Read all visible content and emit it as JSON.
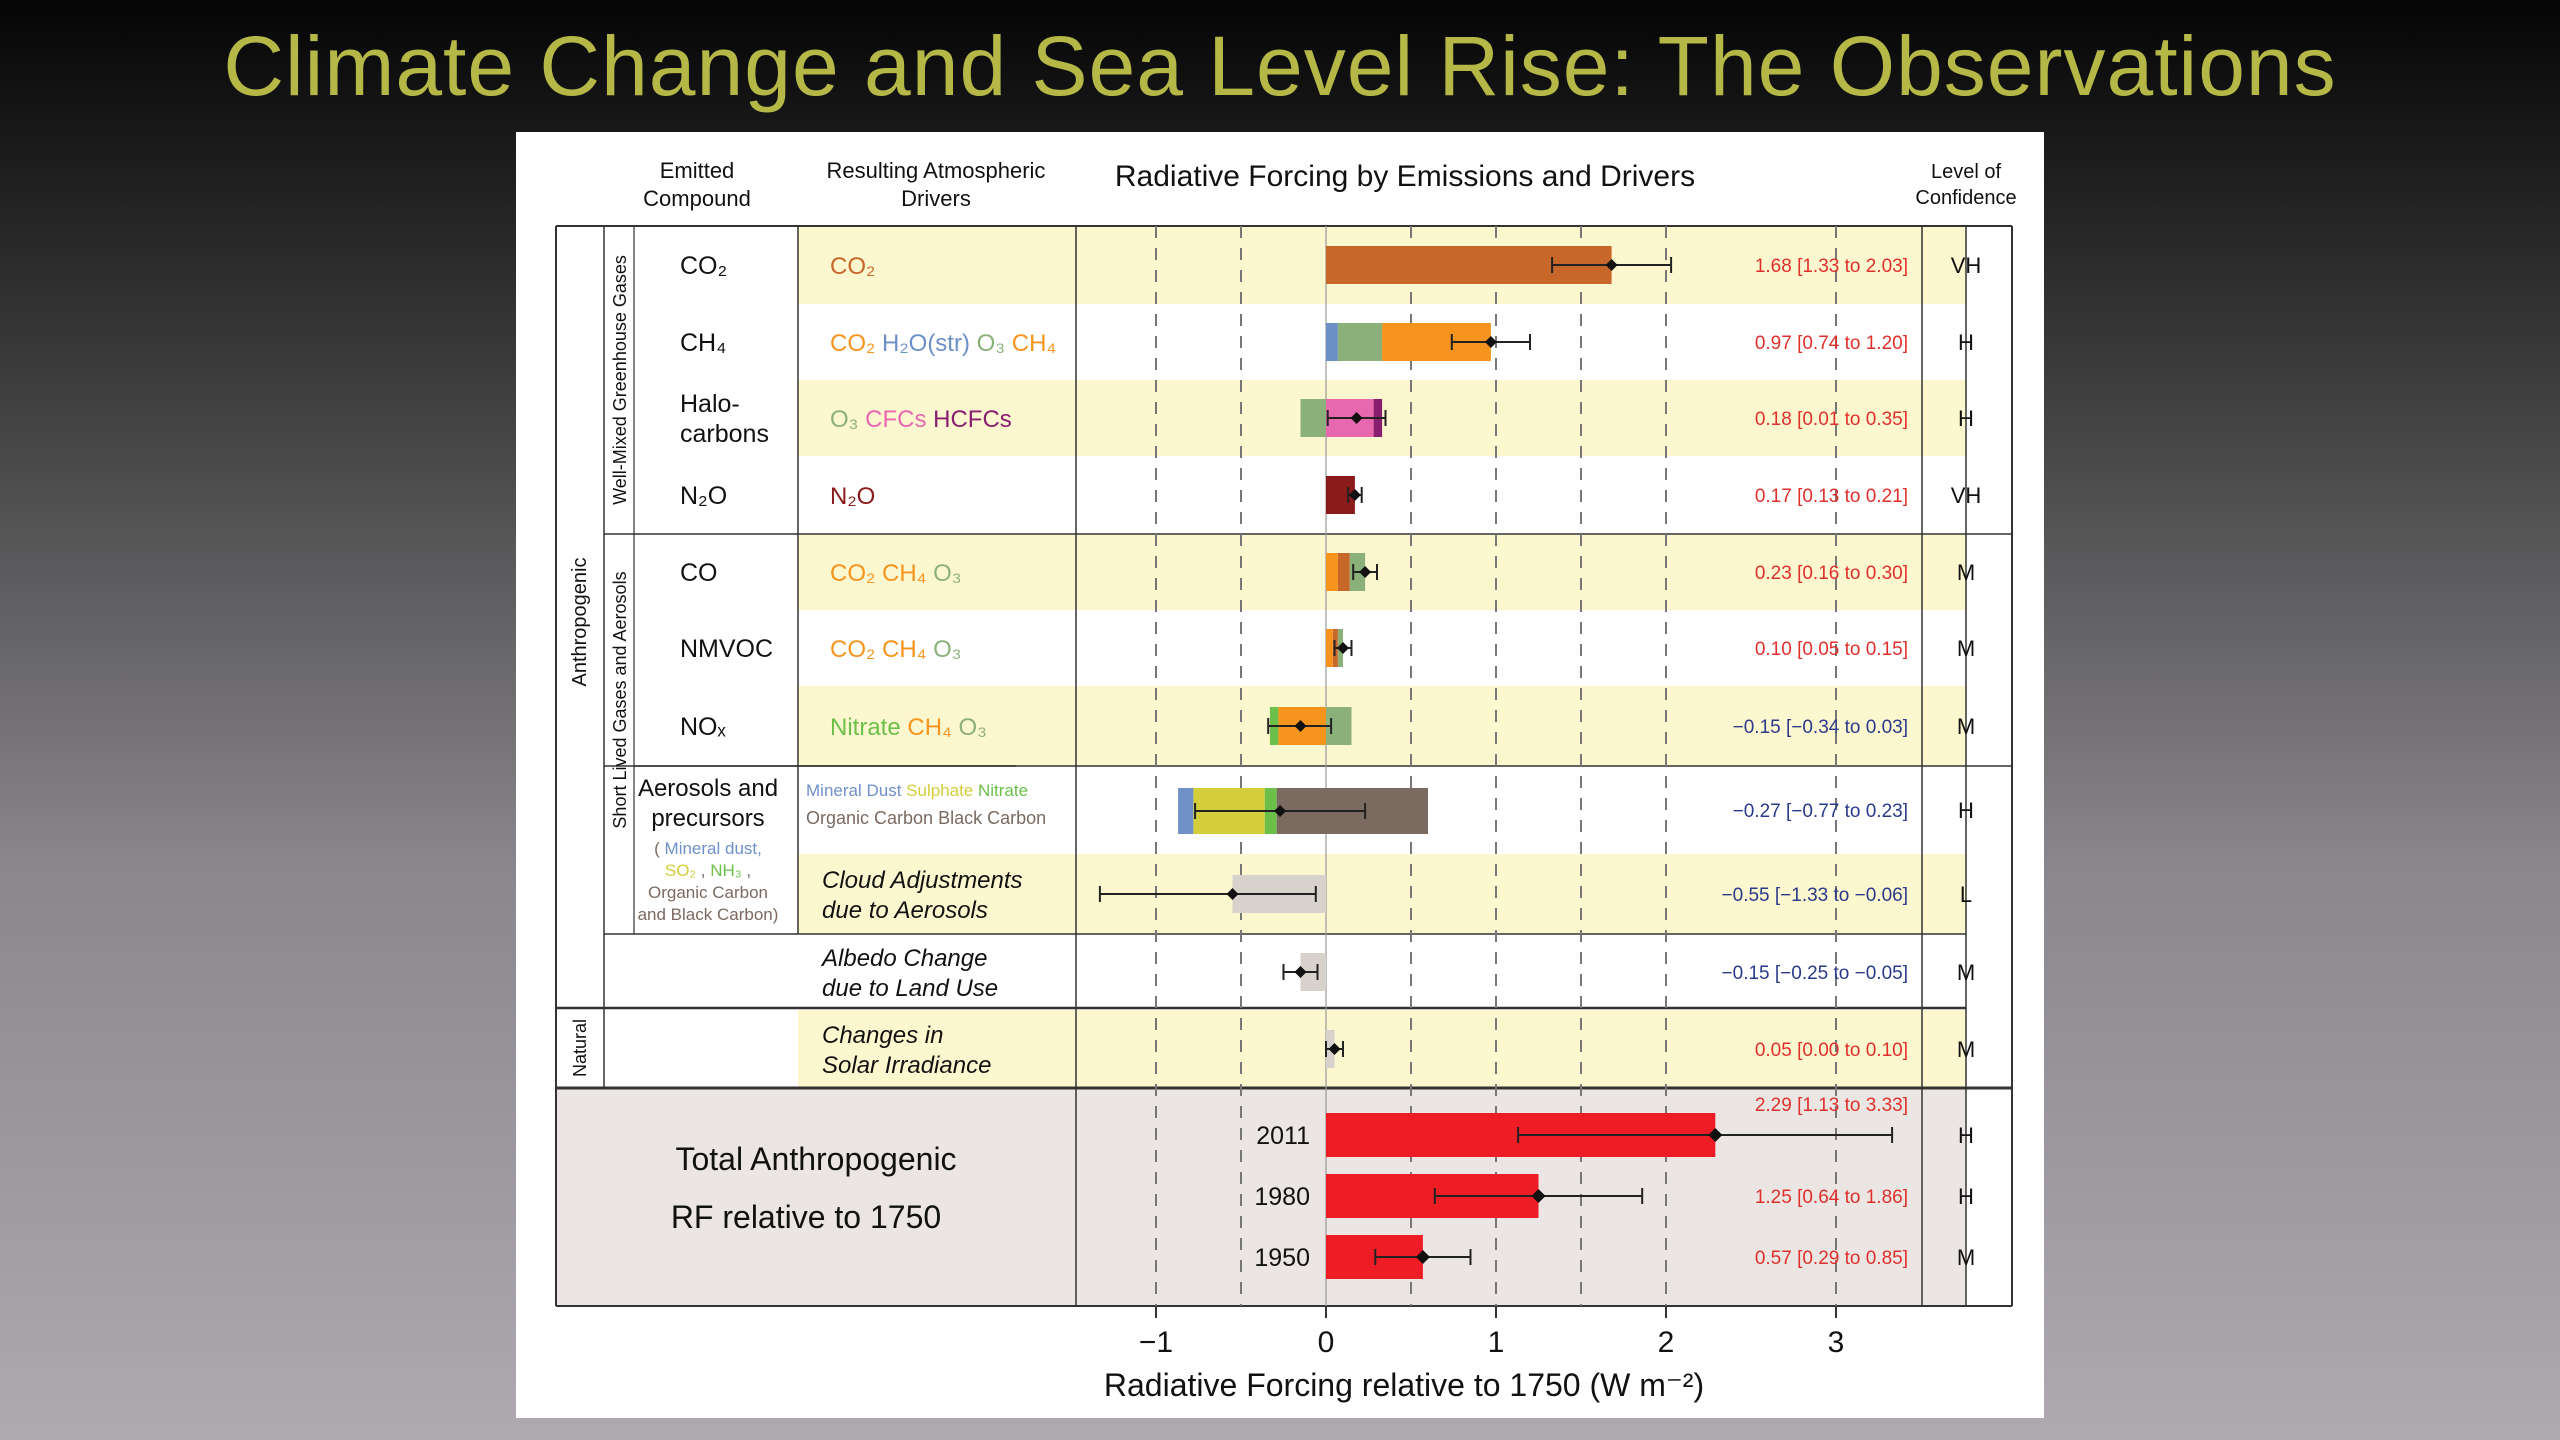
{
  "slide": {
    "title": "Climate Change and Sea Level Rise: The Observations"
  },
  "chart_data": {
    "type": "bar",
    "title": "Radiative Forcing by Emissions and Drivers",
    "xlabel": "Radiative Forcing relative to 1750 (W m⁻²)",
    "xlim": [
      -1.5,
      3.5
    ],
    "xticks": [
      "−1",
      "0",
      "1",
      "2",
      "3"
    ],
    "xtick_values": [
      -1,
      0,
      1,
      2,
      3
    ],
    "headers": {
      "emitted": [
        "Emitted",
        "Compound"
      ],
      "drivers": [
        "Resulting Atmospheric",
        "Drivers"
      ],
      "confidence": [
        "Level of",
        "Confidence"
      ]
    },
    "group_labels": {
      "anthropogenic": "Anthropogenic",
      "natural": "Natural",
      "wmghg": "Well-Mixed Greenhouse Gases",
      "slgas": "Short Lived Gases and Aerosols"
    },
    "colors": {
      "co2": "#c8672a",
      "ch4": "#f7941d",
      "h2o": "#6d8fc7",
      "o3": "#8bb07a",
      "cfc": "#e868b0",
      "hcfc": "#8a1e6e",
      "n2o": "#8b1a1a",
      "nitrate": "#6cc04a",
      "dust": "#7090c8",
      "sulphate": "#d4ce3a",
      "bc": "#7a6a60",
      "gray": "#d8d2cc",
      "total": "#ee1c25",
      "value_pos": "#e0302c",
      "value_neg": "#2a3a8a"
    },
    "rows": [
      {
        "id": "co2",
        "compound": "CO₂",
        "drivers": [
          {
            "t": "CO₂",
            "c": "co2"
          }
        ],
        "segments": [
          {
            "from": 0,
            "to": 1.68,
            "c": "co2"
          }
        ],
        "best": 1.68,
        "range": [
          1.33,
          2.03
        ],
        "label": "1.68 [1.33 to 2.03]",
        "conf": "VH"
      },
      {
        "id": "ch4",
        "compound": "CH₄",
        "drivers": [
          {
            "t": "CO₂",
            "c": "ch4"
          },
          {
            "t": "H₂O(str)",
            "c": "h2o"
          },
          {
            "t": "O₃",
            "c": "o3"
          },
          {
            "t": "CH₄",
            "c": "ch4"
          }
        ],
        "segments": [
          {
            "from": 0,
            "to": 0.07,
            "c": "h2o"
          },
          {
            "from": 0.07,
            "to": 0.33,
            "c": "o3"
          },
          {
            "from": 0.33,
            "to": 0.97,
            "c": "ch4"
          }
        ],
        "best": 0.97,
        "range": [
          0.74,
          1.2
        ],
        "label": "0.97 [0.74 to 1.20]",
        "conf": "H"
      },
      {
        "id": "halo",
        "compound": "Halo-carbons",
        "compound_lines": [
          "Halo-",
          "carbons"
        ],
        "drivers": [
          {
            "t": "O₃",
            "c": "o3"
          },
          {
            "t": "CFCs",
            "c": "cfc"
          },
          {
            "t": "HCFCs",
            "c": "hcfc"
          }
        ],
        "segments": [
          {
            "from": -0.15,
            "to": 0,
            "c": "o3"
          },
          {
            "from": 0,
            "to": 0.28,
            "c": "cfc"
          },
          {
            "from": 0.28,
            "to": 0.33,
            "c": "hcfc"
          }
        ],
        "best": 0.18,
        "range": [
          0.01,
          0.35
        ],
        "label": "0.18 [0.01 to 0.35]",
        "conf": "H"
      },
      {
        "id": "n2o",
        "compound": "N₂O",
        "drivers": [
          {
            "t": "N₂O",
            "c": "n2o"
          }
        ],
        "segments": [
          {
            "from": 0,
            "to": 0.17,
            "c": "n2o"
          }
        ],
        "best": 0.17,
        "range": [
          0.13,
          0.21
        ],
        "label": "0.17 [0.13 to 0.21]",
        "conf": "VH"
      },
      {
        "id": "co",
        "compound": "CO",
        "drivers": [
          {
            "t": "CO₂",
            "c": "ch4"
          },
          {
            "t": "CH₄",
            "c": "ch4"
          },
          {
            "t": "O₃",
            "c": "o3"
          }
        ],
        "segments": [
          {
            "from": 0,
            "to": 0.07,
            "c": "ch4"
          },
          {
            "from": 0.07,
            "to": 0.14,
            "c": "co2"
          },
          {
            "from": 0.14,
            "to": 0.23,
            "c": "o3"
          }
        ],
        "best": 0.23,
        "range": [
          0.16,
          0.3
        ],
        "label": "0.23 [0.16 to 0.30]",
        "conf": "M"
      },
      {
        "id": "nmvoc",
        "compound": "NMVOC",
        "drivers": [
          {
            "t": "CO₂",
            "c": "ch4"
          },
          {
            "t": "CH₄",
            "c": "ch4"
          },
          {
            "t": "O₃",
            "c": "o3"
          }
        ],
        "segments": [
          {
            "from": 0,
            "to": 0.04,
            "c": "ch4"
          },
          {
            "from": 0.04,
            "to": 0.07,
            "c": "co2"
          },
          {
            "from": 0.07,
            "to": 0.1,
            "c": "o3"
          }
        ],
        "best": 0.1,
        "range": [
          0.05,
          0.15
        ],
        "label": "0.10 [0.05 to 0.15]",
        "conf": "M"
      },
      {
        "id": "nox",
        "compound": "NOₓ",
        "drivers": [
          {
            "t": "Nitrate",
            "c": "nitrate"
          },
          {
            "t": "CH₄",
            "c": "ch4"
          },
          {
            "t": "O₃",
            "c": "o3"
          }
        ],
        "segments": [
          {
            "from": -0.33,
            "to": -0.28,
            "c": "nitrate"
          },
          {
            "from": -0.28,
            "to": 0,
            "c": "ch4"
          },
          {
            "from": 0,
            "to": 0.15,
            "c": "o3"
          }
        ],
        "best": -0.15,
        "range": [
          -0.34,
          0.03
        ],
        "label": "−0.15 [−0.34 to 0.03]",
        "conf": "M"
      },
      {
        "id": "aer",
        "compound": "Aerosols and precursors",
        "compound_lines": [
          "Aerosols and",
          "precursors"
        ],
        "sub_lines": [
          [
            {
              "t": "(",
              "c": "bc"
            },
            {
              "t": "Mineral dust,",
              "c": "dust"
            }
          ],
          [
            {
              "t": "SO₂",
              "c": "sulphate"
            },
            {
              "t": ", ",
              "c": "bc"
            },
            {
              "t": "NH₃",
              "c": "nitrate"
            },
            {
              "t": ",",
              "c": "bc"
            }
          ],
          [
            {
              "t": "Organic Carbon",
              "c": "bc"
            }
          ],
          [
            {
              "t": "and Black Carbon)",
              "c": "bc"
            }
          ]
        ],
        "driver_lines": [
          [
            {
              "t": "Mineral Dust",
              "c": "dust"
            },
            {
              "t": "Sulphate",
              "c": "sulphate"
            },
            {
              "t": "Nitrate",
              "c": "nitrate"
            }
          ],
          [
            {
              "t": "Organic Carbon",
              "c": "bc"
            },
            {
              "t": "Black Carbon",
              "c": "bc"
            }
          ]
        ],
        "segments": [
          {
            "from": -0.87,
            "to": -0.78,
            "c": "dust"
          },
          {
            "from": -0.78,
            "to": -0.36,
            "c": "sulphate"
          },
          {
            "from": -0.36,
            "to": -0.29,
            "c": "nitrate"
          },
          {
            "from": -0.29,
            "to": 0,
            "c": "bc"
          },
          {
            "from": 0,
            "to": 0.6,
            "c": "bc"
          }
        ],
        "best": -0.27,
        "range": [
          -0.77,
          0.23
        ],
        "label": "−0.27 [−0.77 to 0.23]",
        "conf": "H"
      },
      {
        "id": "cloud",
        "compound": "",
        "drivers_italic": [
          "Cloud Adjustments",
          "due to Aerosols"
        ],
        "segments": [
          {
            "from": -0.55,
            "to": 0,
            "c": "gray"
          }
        ],
        "best": -0.55,
        "range": [
          -1.33,
          -0.06
        ],
        "label": "−0.55 [−1.33 to −0.06]",
        "conf": "L"
      },
      {
        "id": "albedo",
        "compound": "",
        "drivers_italic": [
          "Albedo Change",
          "due to Land Use"
        ],
        "segments": [
          {
            "from": -0.15,
            "to": 0,
            "c": "gray"
          }
        ],
        "best": -0.15,
        "range": [
          -0.25,
          -0.05
        ],
        "label": "−0.15 [−0.25 to −0.05]",
        "conf": "M"
      },
      {
        "id": "solar",
        "compound": "",
        "drivers_italic": [
          "Changes in",
          "Solar Irradiance"
        ],
        "segments": [
          {
            "from": 0,
            "to": 0.05,
            "c": "gray"
          }
        ],
        "best": 0.05,
        "range": [
          0.0,
          0.1
        ],
        "label": "0.05 [0.00 to 0.10]",
        "conf": "M"
      }
    ],
    "totals": {
      "label_lines": [
        "Total Anthropogenic",
        "RF relative to 1750"
      ],
      "rows": [
        {
          "year": "2011",
          "value": 2.29,
          "range": [
            1.13,
            3.33
          ],
          "label": "2.29 [1.13 to 3.33]",
          "conf": "H"
        },
        {
          "year": "1980",
          "value": 1.25,
          "range": [
            0.64,
            1.86
          ],
          "label": "1.25 [0.64 to 1.86]",
          "conf": "H"
        },
        {
          "year": "1950",
          "value": 0.57,
          "range": [
            0.29,
            0.85
          ],
          "label": "0.57 [0.29 to 0.85]",
          "conf": "M"
        }
      ]
    }
  }
}
